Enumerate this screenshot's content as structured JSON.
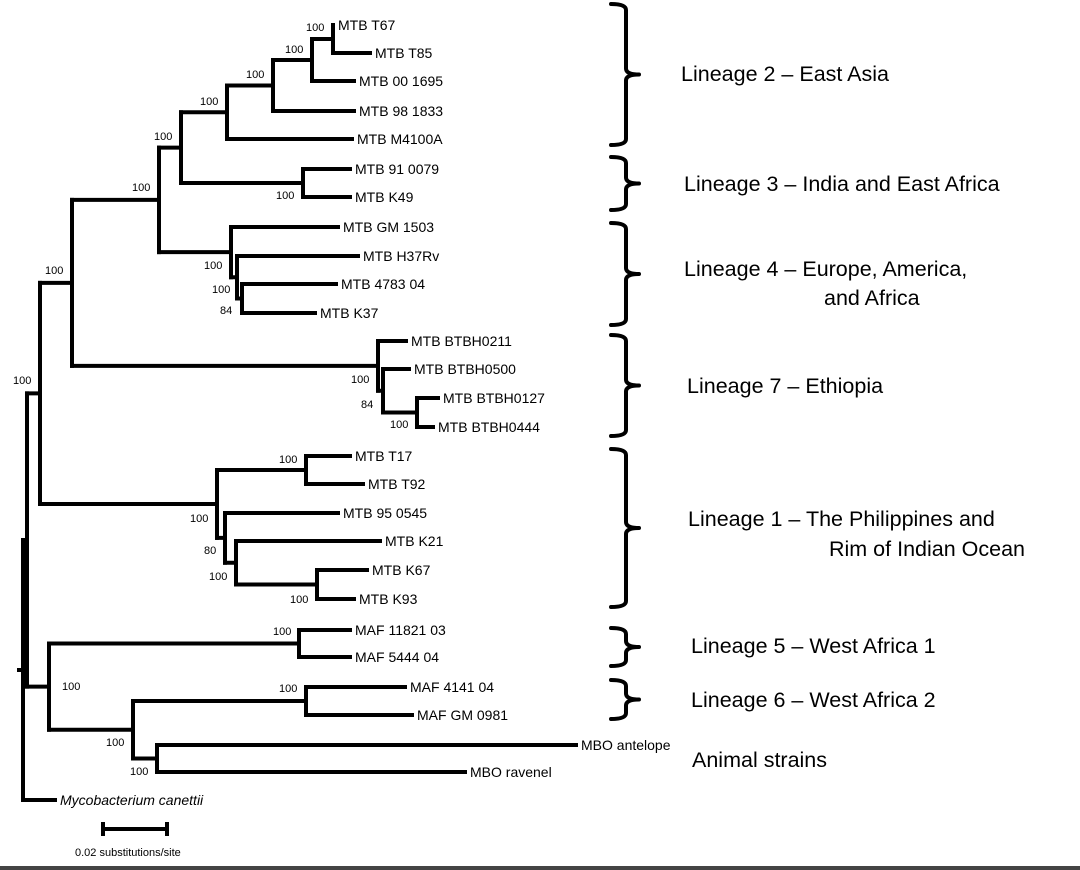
{
  "leaves": [
    {
      "id": "t67",
      "label": "MTB T67"
    },
    {
      "id": "t85",
      "label": "MTB T85"
    },
    {
      "id": "m001695",
      "label": "MTB 00 1695"
    },
    {
      "id": "m981833",
      "label": "MTB 98 1833"
    },
    {
      "id": "m4100a",
      "label": "MTB M4100A"
    },
    {
      "id": "m910079",
      "label": "MTB 91 0079"
    },
    {
      "id": "k49",
      "label": "MTB K49"
    },
    {
      "id": "gm1503",
      "label": "MTB GM 1503"
    },
    {
      "id": "h37rv",
      "label": "MTB H37Rv"
    },
    {
      "id": "m478304",
      "label": "MTB 4783 04"
    },
    {
      "id": "k37",
      "label": "MTB K37"
    },
    {
      "id": "btbh0211",
      "label": "MTB BTBH0211"
    },
    {
      "id": "btbh0500",
      "label": "MTB BTBH0500"
    },
    {
      "id": "btbh0127",
      "label": "MTB BTBH0127"
    },
    {
      "id": "btbh0444",
      "label": "MTB BTBH0444"
    },
    {
      "id": "t17",
      "label": "MTB T17"
    },
    {
      "id": "t92",
      "label": "MTB T92"
    },
    {
      "id": "m950545",
      "label": "MTB 95 0545"
    },
    {
      "id": "k21",
      "label": "MTB K21"
    },
    {
      "id": "k67",
      "label": "MTB K67"
    },
    {
      "id": "k93",
      "label": "MTB K93"
    },
    {
      "id": "maf1182103",
      "label": "MAF 11821 03"
    },
    {
      "id": "maf544404",
      "label": "MAF 5444 04"
    },
    {
      "id": "maf414104",
      "label": "MAF 4141 04"
    },
    {
      "id": "mafgm0981",
      "label": "MAF GM 0981"
    },
    {
      "id": "mbo_antelope",
      "label": "MBO antelope"
    },
    {
      "id": "mbo_ravenel",
      "label": "MBO ravenel"
    },
    {
      "id": "canettii",
      "label": "Mycobacterium canettii"
    }
  ],
  "support_values": [
    {
      "id": "n_t67_t85",
      "value": "100"
    },
    {
      "id": "n_l2a",
      "value": "100"
    },
    {
      "id": "n_l2b",
      "value": "100"
    },
    {
      "id": "n_l2c",
      "value": "100"
    },
    {
      "id": "n_l2_root",
      "value": "100"
    },
    {
      "id": "n_l3",
      "value": "100"
    },
    {
      "id": "n_l234",
      "value": "100"
    },
    {
      "id": "n_l4_root",
      "value": "100"
    },
    {
      "id": "n_l4b",
      "value": "100"
    },
    {
      "id": "n_l4c",
      "value": "84"
    },
    {
      "id": "n_modern",
      "value": "100"
    },
    {
      "id": "n_l7_root",
      "value": "100"
    },
    {
      "id": "n_l7b",
      "value": "84"
    },
    {
      "id": "n_l7c",
      "value": "100"
    },
    {
      "id": "n_mtb",
      "value": "100"
    },
    {
      "id": "n_l1_t",
      "value": "100"
    },
    {
      "id": "n_l1_root",
      "value": "100"
    },
    {
      "id": "n_l1b",
      "value": "80"
    },
    {
      "id": "n_l1c",
      "value": "100"
    },
    {
      "id": "n_l1_k",
      "value": "100"
    },
    {
      "id": "n_l5",
      "value": "100"
    },
    {
      "id": "n_af",
      "value": "100"
    },
    {
      "id": "n_l6",
      "value": "100"
    },
    {
      "id": "n_l6_animal",
      "value": "100"
    },
    {
      "id": "n_animal",
      "value": "100"
    }
  ],
  "lineages": [
    {
      "id": "lineage-2",
      "lines": [
        "Lineage 2 – East Asia"
      ]
    },
    {
      "id": "lineage-3",
      "lines": [
        "Lineage 3 – India and East Africa"
      ]
    },
    {
      "id": "lineage-4",
      "lines": [
        "Lineage 4 – Europe, America,",
        "and Africa"
      ]
    },
    {
      "id": "lineage-7",
      "lines": [
        "Lineage 7 – Ethiopia"
      ]
    },
    {
      "id": "lineage-1",
      "lines": [
        "Lineage 1 – The Philippines and",
        "Rim of Indian Ocean"
      ]
    },
    {
      "id": "lineage-5",
      "lines": [
        "Lineage 5 – West Africa 1"
      ]
    },
    {
      "id": "lineage-6",
      "lines": [
        "Lineage 6 – West Africa 2"
      ]
    },
    {
      "id": "animal-strains",
      "lines": [
        "Animal strains"
      ]
    }
  ],
  "scale_bar": {
    "length": 0.02,
    "label": "0.02 substitutions/site"
  }
}
